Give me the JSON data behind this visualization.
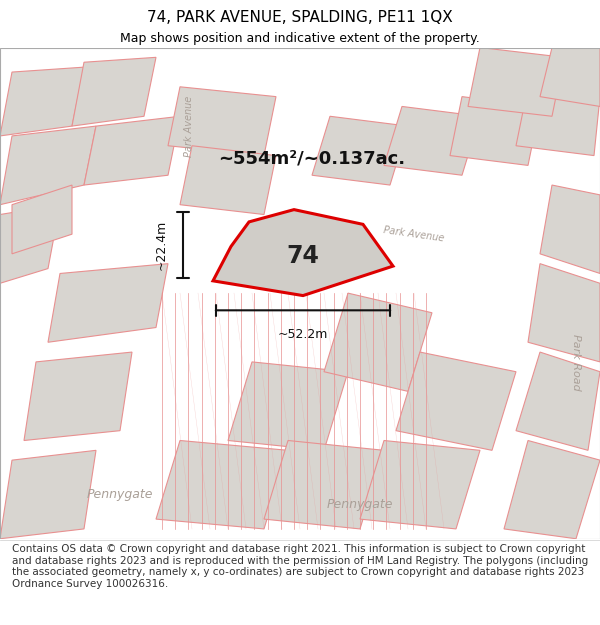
{
  "title": "74, PARK AVENUE, SPALDING, PE11 1QX",
  "subtitle": "Map shows position and indicative extent of the property.",
  "footer": "Contains OS data © Crown copyright and database right 2021. This information is subject to Crown copyright and database rights 2023 and is reproduced with the permission of HM Land Registry. The polygons (including the associated geometry, namely x, y co-ordinates) are subject to Crown copyright and database rights 2023 Ordnance Survey 100026316.",
  "area_label": "~554m²/~0.137ac.",
  "width_label": "~52.2m",
  "height_label": "~22.4m",
  "property_number": "74",
  "map_bg": "#edeae4",
  "building_fill": "#d8d5d0",
  "building_stroke": "#e89090",
  "highlight_color": "#dd0000",
  "highlight_fill": "#d0cdc8",
  "road_label_color": "#aaa098",
  "dim_line_color": "#111111",
  "title_fontsize": 11,
  "subtitle_fontsize": 9,
  "footer_fontsize": 7.5
}
